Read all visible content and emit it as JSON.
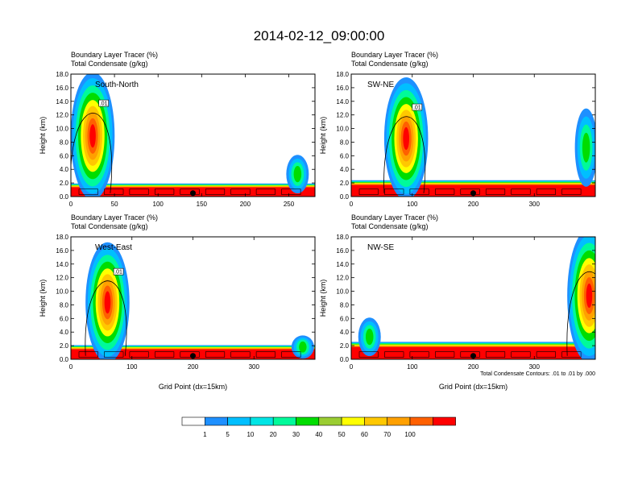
{
  "title": "2014-02-12_09:00:00",
  "chart_data": [
    {
      "type": "heatmap",
      "region": "South-North",
      "label_line1": "Boundary Layer Tracer   (%)",
      "label_line2": "Total Condensate   (g/kg)",
      "ylabel": "Height (km)",
      "xlabel": "",
      "xlim": [
        0,
        280
      ],
      "ylim": [
        0,
        18
      ],
      "xticks": [
        0,
        50,
        100,
        150,
        200,
        250
      ],
      "yticks": [
        "0.0",
        "2.0",
        "4.0",
        "6.0",
        "8.0",
        "10.0",
        "12.0",
        "14.0",
        "16.0",
        "18.0"
      ],
      "marker_x": 140,
      "contour_label": ".01",
      "peak_x": 25,
      "peak_top": 16.2,
      "tail_x": 260,
      "tail_top": 5.5,
      "bl_top": 1.2,
      "note": ""
    },
    {
      "type": "heatmap",
      "region": "SW-NE",
      "label_line1": "Boundary Layer Tracer   (%)",
      "label_line2": "Total Condensate   (g/kg)",
      "ylabel": "Height (km)",
      "xlabel": "",
      "xlim": [
        0,
        400
      ],
      "ylim": [
        0,
        18
      ],
      "xticks": [
        0,
        100,
        200,
        300
      ],
      "yticks": [
        "0.0",
        "2.0",
        "4.0",
        "6.0",
        "8.0",
        "10.0",
        "12.0",
        "14.0",
        "16.0",
        "18.0"
      ],
      "marker_x": 200,
      "contour_label": ".01",
      "peak_x": 90,
      "peak_top": 15.5,
      "tail_x": 385,
      "tail_top": 12,
      "bl_top": 1.5,
      "note": ""
    },
    {
      "type": "heatmap",
      "region": "West-East",
      "label_line1": "Boundary Layer Tracer   (%)",
      "label_line2": "Total Condensate   (g/kg)",
      "ylabel": "Height (km)",
      "xlabel": "Grid Point (dx=15km)",
      "xlim": [
        0,
        400
      ],
      "ylim": [
        0,
        18
      ],
      "xticks": [
        0,
        100,
        200,
        300
      ],
      "yticks": [
        "0.0",
        "2.0",
        "4.0",
        "6.0",
        "8.0",
        "10.0",
        "12.0",
        "14.0",
        "16.0",
        "18.0"
      ],
      "marker_x": 200,
      "contour_label": ".01",
      "peak_x": 60,
      "peak_top": 15.2,
      "tail_x": 380,
      "tail_top": 3,
      "bl_top": 1.3,
      "note": ""
    },
    {
      "type": "heatmap",
      "region": "NW-SE",
      "label_line1": "Boundary Layer Tracer   (%)",
      "label_line2": "Total Condensate   (g/kg)",
      "ylabel": "Height (km)",
      "xlabel": "Grid Point (dx=15km)",
      "xlim": [
        0,
        400
      ],
      "ylim": [
        0,
        18
      ],
      "xticks": [
        0,
        100,
        200,
        300
      ],
      "yticks": [
        "0.0",
        "2.0",
        "4.0",
        "6.0",
        "8.0",
        "10.0",
        "12.0",
        "14.0",
        "16.0",
        "18.0"
      ],
      "marker_x": 200,
      "contour_label": ".01",
      "peak_x": 390,
      "peak_top": 17,
      "tail_x": 30,
      "tail_top": 5.5,
      "bl_top": 1.6,
      "note": "Total Condensate Contours: .01 to .01 by .000"
    }
  ],
  "colorbar": {
    "labels": [
      "1",
      "5",
      "10",
      "20",
      "30",
      "40",
      "50",
      "60",
      "70",
      "100"
    ],
    "colors": [
      "#ffffff",
      "#1e90ff",
      "#00bfff",
      "#00e5e5",
      "#00fa9a",
      "#00dd00",
      "#9acd32",
      "#ffff00",
      "#ffc800",
      "#ffa000",
      "#ff6000",
      "#ff0000"
    ]
  }
}
